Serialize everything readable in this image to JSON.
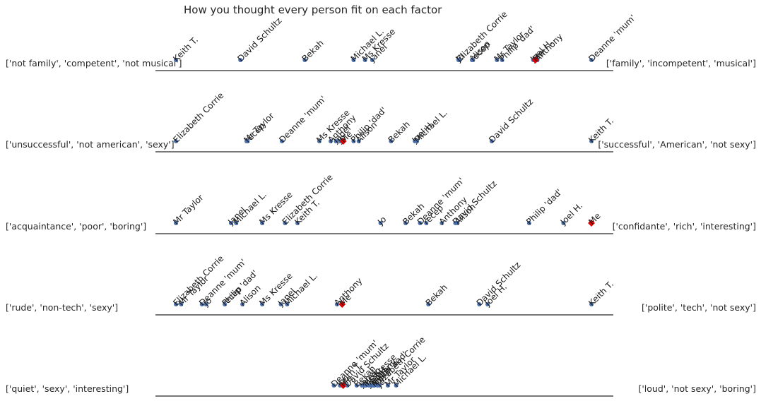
{
  "chart_data": {
    "type": "scatter",
    "title": "How you thought every person fit on each factor",
    "xlim": [
      -1.1,
      1.1
    ],
    "grid": false,
    "legend": "none",
    "colors": {
      "person": "#4c72b0",
      "me": "#e00000",
      "axis": "#262626"
    },
    "factors": [
      {
        "left_label": "['not family', 'competent', 'not musical']",
        "right_label": "['family', 'incompetent', 'musical']",
        "points": [
          {
            "name": "Keith T.",
            "x": -1.0
          },
          {
            "name": "David Schultz",
            "x": -0.69
          },
          {
            "name": "Bekah",
            "x": -0.38
          },
          {
            "name": "Michael L.",
            "x": -0.145
          },
          {
            "name": "Ms Kresse",
            "x": -0.09
          },
          {
            "name": "Janel",
            "x": -0.055
          },
          {
            "name": "Elizabeth Corrie",
            "x": 0.365
          },
          {
            "name": "Jo",
            "x": 0.36
          },
          {
            "name": "Alison",
            "x": 0.425
          },
          {
            "name": "recep",
            "x": 0.43
          },
          {
            "name": "Mr Taylor",
            "x": 0.545
          },
          {
            "name": "Philip 'dad'",
            "x": 0.57
          },
          {
            "name": "Joel H.",
            "x": 0.72
          },
          {
            "name": "Anthony",
            "x": 0.74
          },
          {
            "name": "Me",
            "x": 0.73,
            "is_me": true
          },
          {
            "name": "Deanne 'mum'",
            "x": 1.0
          }
        ]
      },
      {
        "left_label": "['unsuccessful', 'not american', 'sexy']",
        "right_label": "['successful', 'American', 'not sexy']",
        "points": [
          {
            "name": "Elizabeth Corrie",
            "x": -1.0
          },
          {
            "name": "Mr Taylor",
            "x": -0.66
          },
          {
            "name": "recep",
            "x": -0.655
          },
          {
            "name": "Deanne 'mum'",
            "x": -0.49
          },
          {
            "name": "Ms Kresse",
            "x": -0.31
          },
          {
            "name": "Anthony",
            "x": -0.255
          },
          {
            "name": "Janel",
            "x": -0.23
          },
          {
            "name": "Jo",
            "x": -0.21
          },
          {
            "name": "Me",
            "x": -0.195,
            "is_me": true
          },
          {
            "name": "Philip 'dad'",
            "x": -0.145
          },
          {
            "name": "Alison",
            "x": -0.12
          },
          {
            "name": "Bekah",
            "x": 0.035
          },
          {
            "name": "Joel H.",
            "x": 0.15
          },
          {
            "name": "Michael L.",
            "x": 0.16
          },
          {
            "name": "David Schultz",
            "x": 0.52
          },
          {
            "name": "Keith T.",
            "x": 1.0
          }
        ]
      },
      {
        "left_label": "['acquaintance', 'poor', 'boring']",
        "right_label": "['confidante', 'rich', 'interesting']",
        "points": [
          {
            "name": "Mr Taylor",
            "x": -1.0
          },
          {
            "name": "Janel",
            "x": -0.735
          },
          {
            "name": "Michael L.",
            "x": -0.71
          },
          {
            "name": "Ms Kresse",
            "x": -0.585
          },
          {
            "name": "Elizabeth Corrie",
            "x": -0.475
          },
          {
            "name": "Keith T.",
            "x": -0.415
          },
          {
            "name": "Jo",
            "x": -0.015
          },
          {
            "name": "Bekah",
            "x": 0.105
          },
          {
            "name": "Deanne 'mum'",
            "x": 0.175
          },
          {
            "name": "recep",
            "x": 0.205
          },
          {
            "name": "Anthony",
            "x": 0.28
          },
          {
            "name": "David Schultz",
            "x": 0.345
          },
          {
            "name": "Alison",
            "x": 0.355
          },
          {
            "name": "Philip 'dad'",
            "x": 0.7
          },
          {
            "name": "Joel H.",
            "x": 0.865
          },
          {
            "name": "Me",
            "x": 1.0,
            "is_me": true
          }
        ]
      },
      {
        "left_label": "['rude', 'non-tech', 'sexy']",
        "right_label": "['polite', 'tech', 'not sexy']",
        "points": [
          {
            "name": "Elizabeth Corrie",
            "x": -1.0
          },
          {
            "name": "Mr Taylor",
            "x": -0.975
          },
          {
            "name": "Deanne 'mum'",
            "x": -0.875
          },
          {
            "name": "Jo",
            "x": -0.855
          },
          {
            "name": "Philip 'dad'",
            "x": -0.765
          },
          {
            "name": "recep",
            "x": -0.765
          },
          {
            "name": "Alison",
            "x": -0.68
          },
          {
            "name": "Ms Kresse",
            "x": -0.585
          },
          {
            "name": "Janel",
            "x": -0.495
          },
          {
            "name": "Michael L.",
            "x": -0.465
          },
          {
            "name": "Anthony",
            "x": -0.225
          },
          {
            "name": "Me",
            "x": -0.2,
            "is_me": true
          },
          {
            "name": "Bekah",
            "x": 0.215
          },
          {
            "name": "David Schultz",
            "x": 0.46
          },
          {
            "name": "Joel H.",
            "x": 0.5
          },
          {
            "name": "Keith T.",
            "x": 1.0
          }
        ]
      },
      {
        "left_label": "['quiet', 'sexy', 'interesting']",
        "right_label": "['loud', 'not sexy', 'boring']",
        "points": [
          {
            "name": "Deanne 'mum'",
            "x": -0.24
          },
          {
            "name": "Keith T.",
            "x": -0.21
          },
          {
            "name": "Me",
            "x": -0.195,
            "is_me": true
          },
          {
            "name": "David Schultz",
            "x": -0.175
          },
          {
            "name": "Bekah",
            "x": -0.13
          },
          {
            "name": "Janel",
            "x": -0.105
          },
          {
            "name": "recep",
            "x": -0.095
          },
          {
            "name": "Ms Kresse",
            "x": -0.085
          },
          {
            "name": "Joel H.",
            "x": -0.07
          },
          {
            "name": "Anthony",
            "x": -0.06
          },
          {
            "name": "Alison",
            "x": -0.05
          },
          {
            "name": "Philip 'dad'",
            "x": -0.045
          },
          {
            "name": "Elizabeth Corrie",
            "x": -0.03
          },
          {
            "name": "Jo",
            "x": -0.02
          },
          {
            "name": "Mr Taylor",
            "x": 0.02
          },
          {
            "name": "Michael L.",
            "x": 0.06
          }
        ]
      }
    ]
  }
}
